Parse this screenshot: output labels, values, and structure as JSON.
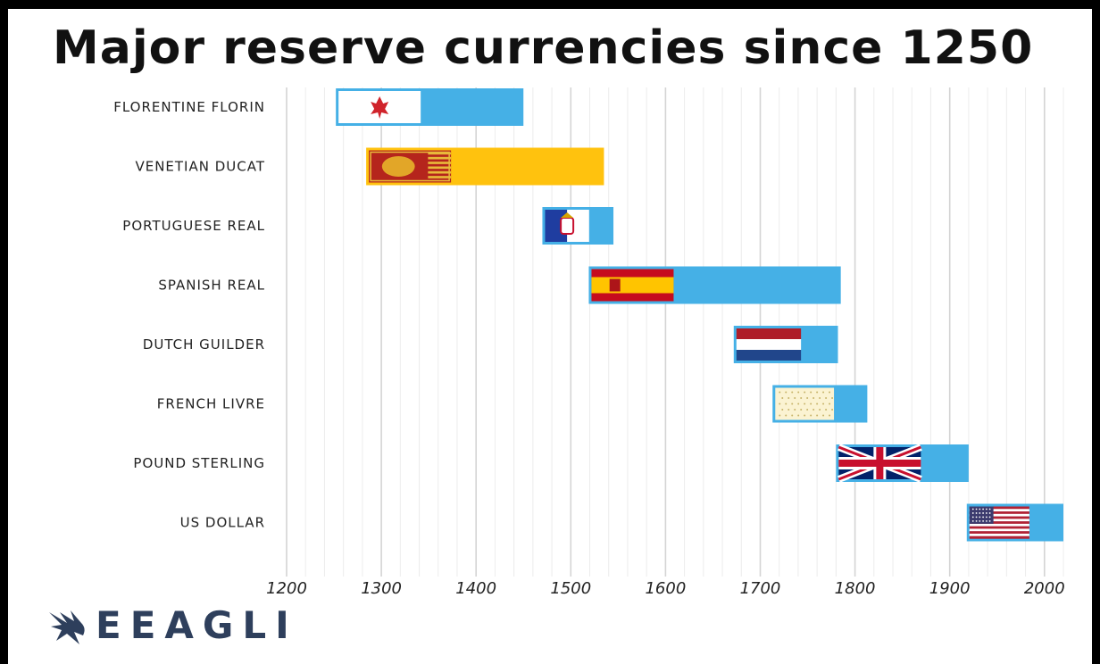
{
  "chart_data": {
    "type": "bar",
    "orientation": "horizontal-range",
    "title": "Major reserve currencies since 1250",
    "xlabel": "",
    "ylabel": "",
    "xlim": [
      1200,
      2020
    ],
    "xticks": [
      1200,
      1300,
      1400,
      1500,
      1600,
      1700,
      1800,
      1900,
      2000
    ],
    "grid": true,
    "categories": [
      "FLORENTINE FLORIN",
      "VENETIAN DUCAT",
      "PORTUGUESE REAL",
      "SPANISH REAL",
      "DUTCH GUILDER",
      "FRENCH LIVRE",
      "POUND STERLING",
      "US DOLLAR"
    ],
    "series": [
      {
        "values": [
          {
            "start": 1252,
            "end": 1450
          },
          {
            "start": 1284,
            "end": 1535
          },
          {
            "start": 1470,
            "end": 1545
          },
          {
            "start": 1519,
            "end": 1785
          },
          {
            "start": 1672,
            "end": 1782
          },
          {
            "start": 1713,
            "end": 1813
          },
          {
            "start": 1780,
            "end": 1920
          },
          {
            "start": 1918,
            "end": 2020
          }
        ]
      }
    ],
    "colors": {
      "bar": "#45b0e6",
      "venetian_bar": "#ffc20e",
      "gridline": "#dcdcdc"
    },
    "flags": [
      "florence-flag-icon",
      "venice-flag-icon",
      "portugal-flag-icon",
      "spain-flag-icon",
      "netherlands-flag-icon",
      "france-flag-icon",
      "uk-flag-icon",
      "usa-flag-icon"
    ]
  },
  "brand": {
    "name": "EEAGLI",
    "icon": "eagle-icon",
    "color": "#2e3f5c"
  }
}
